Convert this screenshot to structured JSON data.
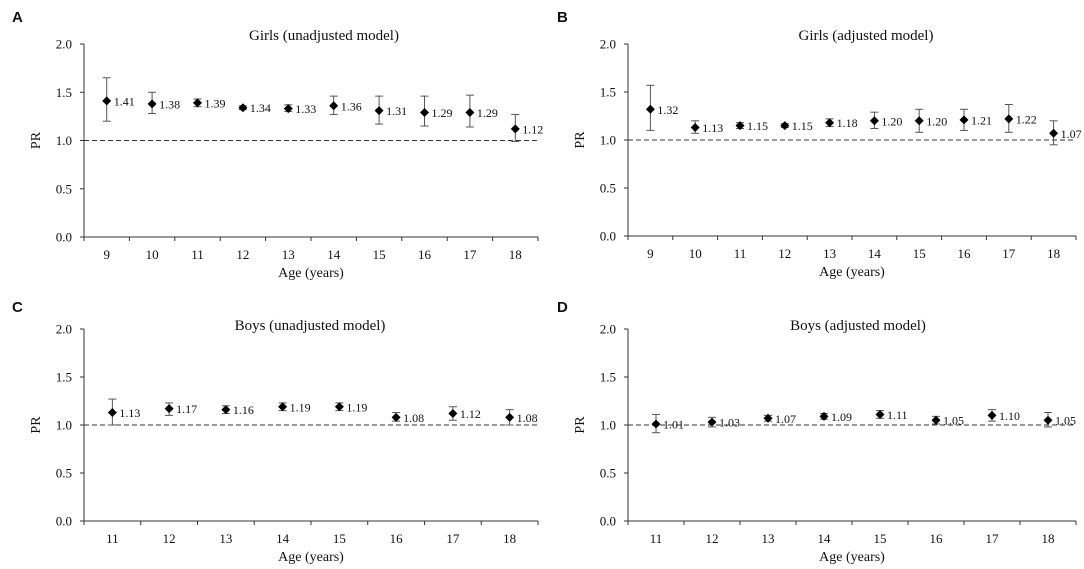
{
  "chart_data": [
    {
      "panel": "A",
      "type": "scatter",
      "title": "Girls (unadjusted model)",
      "xlabel": "Age (years)",
      "ylabel": "PR",
      "ylim": [
        0,
        2
      ],
      "yticks": [
        "0.0",
        "0.5",
        "1.0",
        "1.5",
        "2.0"
      ],
      "reference_line": 1.0,
      "categories": [
        "9",
        "10",
        "11",
        "12",
        "13",
        "14",
        "15",
        "16",
        "17",
        "18"
      ],
      "values": [
        1.41,
        1.38,
        1.39,
        1.34,
        1.33,
        1.36,
        1.31,
        1.29,
        1.29,
        1.12
      ],
      "labels": [
        "1.41",
        "1.38",
        "1.39",
        "1.34",
        "1.33",
        "1.36",
        "1.31",
        "1.29",
        "1.29",
        "1.12"
      ],
      "ci_lower": [
        1.2,
        1.28,
        1.35,
        1.32,
        1.3,
        1.27,
        1.17,
        1.15,
        1.14,
        0.99
      ],
      "ci_upper": [
        1.65,
        1.5,
        1.43,
        1.36,
        1.37,
        1.46,
        1.46,
        1.46,
        1.47,
        1.27
      ]
    },
    {
      "panel": "B",
      "type": "scatter",
      "title": "Girls (adjusted model)",
      "xlabel": "Age (years)",
      "ylabel": "PR",
      "ylim": [
        0,
        2
      ],
      "yticks": [
        "0.0",
        "0.5",
        "1.0",
        "1.5",
        "2.0"
      ],
      "reference_line": 1.0,
      "categories": [
        "9",
        "10",
        "11",
        "12",
        "13",
        "14",
        "15",
        "16",
        "17",
        "18"
      ],
      "values": [
        1.32,
        1.13,
        1.15,
        1.15,
        1.18,
        1.2,
        1.2,
        1.21,
        1.22,
        1.07
      ],
      "labels": [
        "1.32",
        "1.13",
        "1.15",
        "1.15",
        "1.18",
        "1.20",
        "1.20",
        "1.21",
        "1.22",
        "1.07"
      ],
      "ci_lower": [
        1.1,
        1.07,
        1.12,
        1.13,
        1.14,
        1.12,
        1.08,
        1.1,
        1.08,
        0.95
      ],
      "ci_upper": [
        1.57,
        1.2,
        1.18,
        1.17,
        1.22,
        1.29,
        1.32,
        1.32,
        1.37,
        1.2
      ]
    },
    {
      "panel": "C",
      "type": "scatter",
      "title": "Boys (unadjusted model)",
      "xlabel": "Age (years)",
      "ylabel": "PR",
      "ylim": [
        0,
        2
      ],
      "yticks": [
        "0.0",
        "0.5",
        "1.0",
        "1.5",
        "2.0"
      ],
      "reference_line": 1.0,
      "categories": [
        "11",
        "12",
        "13",
        "14",
        "15",
        "16",
        "17",
        "18"
      ],
      "values": [
        1.13,
        1.17,
        1.16,
        1.19,
        1.19,
        1.08,
        1.12,
        1.08
      ],
      "labels": [
        "1.13",
        "1.17",
        "1.16",
        "1.19",
        "1.19",
        "1.08",
        "1.12",
        "1.08"
      ],
      "ci_lower": [
        1.0,
        1.1,
        1.12,
        1.15,
        1.15,
        1.04,
        1.05,
        1.0
      ],
      "ci_upper": [
        1.27,
        1.23,
        1.2,
        1.23,
        1.23,
        1.13,
        1.19,
        1.16
      ]
    },
    {
      "panel": "D",
      "type": "scatter",
      "title": "Boys (adjusted model)",
      "xlabel": "Age (years)",
      "ylabel": "PR",
      "ylim": [
        0,
        2
      ],
      "yticks": [
        "0.0",
        "0.5",
        "1.0",
        "1.5",
        "2.0"
      ],
      "reference_line": 1.0,
      "categories": [
        "11",
        "12",
        "13",
        "14",
        "15",
        "16",
        "17",
        "18"
      ],
      "values": [
        1.01,
        1.03,
        1.07,
        1.09,
        1.11,
        1.05,
        1.1,
        1.05
      ],
      "labels": [
        "1.01",
        "1.03",
        "1.07",
        "1.09",
        "1.11",
        "1.05",
        "1.10",
        "1.05"
      ],
      "ci_lower": [
        0.92,
        0.98,
        1.04,
        1.06,
        1.07,
        1.01,
        1.04,
        0.98
      ],
      "ci_upper": [
        1.11,
        1.08,
        1.1,
        1.12,
        1.15,
        1.09,
        1.16,
        1.13
      ]
    }
  ],
  "colors": {
    "marker": "#000000",
    "errorbar": "#555555",
    "axis": "#333333",
    "reference_line": "#333333"
  }
}
